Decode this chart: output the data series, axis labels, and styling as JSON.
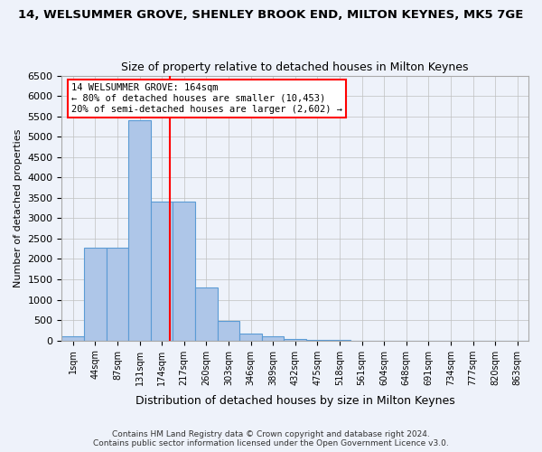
{
  "title": "14, WELSUMMER GROVE, SHENLEY BROOK END, MILTON KEYNES, MK5 7GE",
  "subtitle": "Size of property relative to detached houses in Milton Keynes",
  "xlabel": "Distribution of detached houses by size in Milton Keynes",
  "ylabel": "Number of detached properties",
  "footer_line1": "Contains HM Land Registry data © Crown copyright and database right 2024.",
  "footer_line2": "Contains public sector information licensed under the Open Government Licence v3.0.",
  "bin_labels": [
    "1sqm",
    "44sqm",
    "87sqm",
    "131sqm",
    "174sqm",
    "217sqm",
    "260sqm",
    "303sqm",
    "346sqm",
    "389sqm",
    "432sqm",
    "475sqm",
    "518sqm",
    "561sqm",
    "604sqm",
    "648sqm",
    "691sqm",
    "734sqm",
    "777sqm",
    "820sqm",
    "863sqm"
  ],
  "bar_values": [
    100,
    2280,
    2280,
    5400,
    3400,
    3400,
    1300,
    470,
    175,
    100,
    30,
    10,
    5,
    3,
    2,
    1,
    1,
    1,
    0,
    0,
    0
  ],
  "bar_color": "#aec6e8",
  "bar_edge_color": "#5b9bd5",
  "property_line_x": 4.35,
  "property_sqm": 164,
  "annotation_text_line1": "14 WELSUMMER GROVE: 164sqm",
  "annotation_text_line2": "← 80% of detached houses are smaller (10,453)",
  "annotation_text_line3": "20% of semi-detached houses are larger (2,602) →",
  "vline_color": "red",
  "annotation_box_color": "white",
  "annotation_box_edge": "red",
  "ylim": [
    0,
    6500
  ],
  "yticks": [
    0,
    500,
    1000,
    1500,
    2000,
    2500,
    3000,
    3500,
    4000,
    4500,
    5000,
    5500,
    6000,
    6500
  ],
  "grid_color": "#c0c0c0",
  "background_color": "#eef2fa"
}
